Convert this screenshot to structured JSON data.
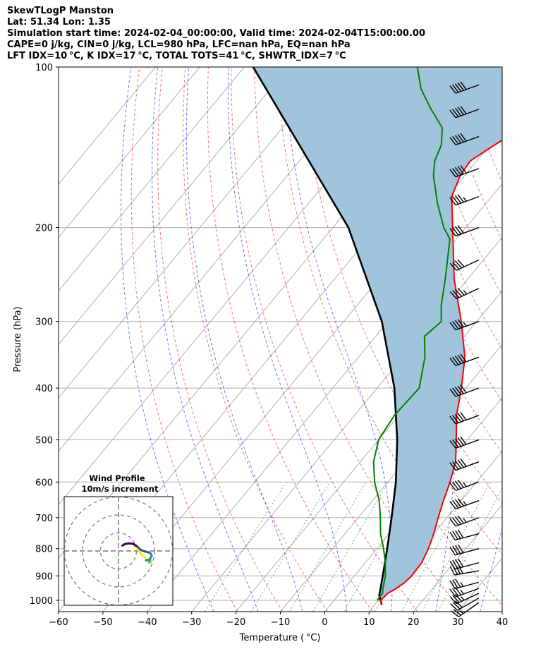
{
  "header": {
    "line1": "SkewTLogP Manston",
    "line2": "Lat: 51.34   Lon: 1.35",
    "line3": "Simulation start time: 2024-02-04_00:00:00, Valid time: 2024-02-04T15:00:00.00",
    "line4": "CAPE=0 j/kg, CIN=0 j/kg, LCL=980 hPa, LFC=nan hPa, EQ=nan hPa",
    "line5": "LFT IDX=10 °C, K IDX=17 °C, TOTAL TOTS=41 °C, SHWTR_IDX=7 °C"
  },
  "chart_data": {
    "type": "line",
    "diagram": "skew-T log-P",
    "xlabel": "Temperature ( °C)",
    "ylabel": "Pressure (hPa)",
    "xlim": [
      -60,
      40
    ],
    "ylim": [
      1050,
      100
    ],
    "y_scale": "log",
    "x_ticks": [
      -60,
      -50,
      -40,
      -30,
      -20,
      -10,
      0,
      10,
      20,
      30,
      40
    ],
    "y_ticks": [
      1000,
      900,
      800,
      700,
      600,
      500,
      400,
      300,
      200,
      100
    ],
    "grid": true,
    "series": [
      {
        "role": "temperature",
        "color": "#ff0000",
        "points": [
          [
            1020,
            11.5
          ],
          [
            1000,
            10.5
          ],
          [
            970,
            10.8
          ],
          [
            950,
            11.8
          ],
          [
            925,
            12.6
          ],
          [
            900,
            12.9
          ],
          [
            850,
            12.7
          ],
          [
            800,
            11.6
          ],
          [
            750,
            10.0
          ],
          [
            700,
            8.0
          ],
          [
            650,
            6.0
          ],
          [
            600,
            4.0
          ],
          [
            550,
            1.5
          ],
          [
            500,
            -2.5
          ],
          [
            450,
            -7.0
          ],
          [
            400,
            -11.0
          ],
          [
            350,
            -16.0
          ],
          [
            300,
            -23.5
          ],
          [
            250,
            -33.0
          ],
          [
            200,
            -43.0
          ],
          [
            175,
            -49.0
          ],
          [
            160,
            -51.0
          ],
          [
            150,
            -51.5
          ],
          [
            140,
            -49.0
          ],
          [
            130,
            -46.0
          ],
          [
            120,
            -44.0
          ],
          [
            110,
            -45.5
          ],
          [
            100,
            -48.5
          ]
        ]
      },
      {
        "role": "dewpoint",
        "color": "#008000",
        "points": [
          [
            1000,
            9.7
          ],
          [
            970,
            9.6
          ],
          [
            950,
            8.8
          ],
          [
            900,
            7.0
          ],
          [
            850,
            4.5
          ],
          [
            800,
            1.5
          ],
          [
            750,
            -2.0
          ],
          [
            700,
            -5.0
          ],
          [
            650,
            -8.5
          ],
          [
            600,
            -13.0
          ],
          [
            550,
            -17.0
          ],
          [
            500,
            -20.0
          ],
          [
            450,
            -21.0
          ],
          [
            400,
            -20.5
          ],
          [
            350,
            -25.0
          ],
          [
            320,
            -29.0
          ],
          [
            300,
            -28.0
          ],
          [
            280,
            -31.0
          ],
          [
            250,
            -35.0
          ],
          [
            210,
            -41.5
          ],
          [
            200,
            -45.0
          ],
          [
            180,
            -51.0
          ],
          [
            160,
            -57.0
          ],
          [
            150,
            -59.5
          ],
          [
            140,
            -61.0
          ],
          [
            130,
            -64.0
          ],
          [
            120,
            -70.0
          ],
          [
            110,
            -76.0
          ],
          [
            100,
            -81.0
          ]
        ]
      },
      {
        "role": "parcel",
        "color": "#000000",
        "points": [
          [
            1020,
            11.6
          ],
          [
            1000,
            10.5
          ],
          [
            980,
            9.3
          ],
          [
            900,
            6.4
          ],
          [
            800,
            2.3
          ],
          [
            700,
            -2.5
          ],
          [
            600,
            -8.2
          ],
          [
            500,
            -15.8
          ],
          [
            400,
            -26.1
          ],
          [
            300,
            -41.4
          ],
          [
            200,
            -66.5
          ],
          [
            100,
            -118.0
          ]
        ]
      }
    ],
    "shaded_region": {
      "between": [
        "temperature",
        "parcel"
      ],
      "color": "#a1c4dd"
    },
    "dry_adiabats_theta_K": [
      250,
      260,
      270,
      280,
      290,
      300,
      310,
      320,
      330,
      340,
      350,
      360,
      370,
      380,
      390,
      400,
      410,
      420,
      430,
      440,
      450,
      460,
      470,
      480,
      490,
      500
    ],
    "moist_adiabats_start_T_C": [
      -25,
      -15,
      -5,
      5,
      15,
      25,
      35,
      45
    ],
    "mixing_ratio_lines_gkg": [
      0.4,
      1,
      2,
      3,
      5,
      8,
      12,
      16,
      20
    ],
    "wind_barbs": [
      {
        "p": 1010,
        "dir": 235,
        "speed_kt": 25
      },
      {
        "p": 990,
        "dir": 240,
        "speed_kt": 30
      },
      {
        "p": 970,
        "dir": 245,
        "speed_kt": 35
      },
      {
        "p": 950,
        "dir": 250,
        "speed_kt": 35
      },
      {
        "p": 925,
        "dir": 255,
        "speed_kt": 35
      },
      {
        "p": 880,
        "dir": 260,
        "speed_kt": 40
      },
      {
        "p": 850,
        "dir": 255,
        "speed_kt": 40
      },
      {
        "p": 800,
        "dir": 255,
        "speed_kt": 40
      },
      {
        "p": 750,
        "dir": 255,
        "speed_kt": 40
      },
      {
        "p": 700,
        "dir": 250,
        "speed_kt": 45
      },
      {
        "p": 650,
        "dir": 250,
        "speed_kt": 45
      },
      {
        "p": 600,
        "dir": 250,
        "speed_kt": 45
      },
      {
        "p": 550,
        "dir": 250,
        "speed_kt": 50
      },
      {
        "p": 500,
        "dir": 250,
        "speed_kt": 50
      },
      {
        "p": 450,
        "dir": 250,
        "speed_kt": 50
      },
      {
        "p": 400,
        "dir": 250,
        "speed_kt": 50
      },
      {
        "p": 350,
        "dir": 250,
        "speed_kt": 50
      },
      {
        "p": 300,
        "dir": 250,
        "speed_kt": 45
      },
      {
        "p": 260,
        "dir": 245,
        "speed_kt": 45
      },
      {
        "p": 230,
        "dir": 245,
        "speed_kt": 40
      },
      {
        "p": 200,
        "dir": 250,
        "speed_kt": 40
      },
      {
        "p": 175,
        "dir": 250,
        "speed_kt": 45
      },
      {
        "p": 155,
        "dir": 250,
        "speed_kt": 50
      },
      {
        "p": 135,
        "dir": 250,
        "speed_kt": 50
      },
      {
        "p": 120,
        "dir": 250,
        "speed_kt": 50
      },
      {
        "p": 108,
        "dir": 250,
        "speed_kt": 50
      }
    ],
    "inset": {
      "title": "Wind Profile",
      "subtitle": "10m/s increment",
      "hodograph": [
        [
          9.0,
          2.5
        ],
        [
          10.5,
          1.0
        ],
        [
          12.5,
          -1.5
        ],
        [
          14.5,
          -3.5
        ],
        [
          16.0,
          -5.5
        ],
        [
          17.0,
          -6.5
        ],
        [
          17.8,
          -6.0
        ],
        [
          17.5,
          -5.2
        ],
        [
          16.2,
          -5.0
        ],
        [
          15.3,
          -5.2
        ],
        [
          17.4,
          -4.8
        ],
        [
          17.8,
          -3.8
        ],
        [
          18.5,
          -2.8
        ],
        [
          18.0,
          -1.5
        ],
        [
          16.8,
          -0.8
        ],
        [
          14.5,
          -0.2
        ],
        [
          12.5,
          0.5
        ],
        [
          11.5,
          1.5
        ],
        [
          10.0,
          2.8
        ],
        [
          8.0,
          4.0
        ],
        [
          5.5,
          4.2
        ],
        [
          3.5,
          3.8
        ],
        [
          2.2,
          3.0
        ]
      ],
      "colors": [
        "#fde725",
        "#5ec962",
        "#21918c",
        "#3b528b",
        "#440154"
      ]
    }
  }
}
